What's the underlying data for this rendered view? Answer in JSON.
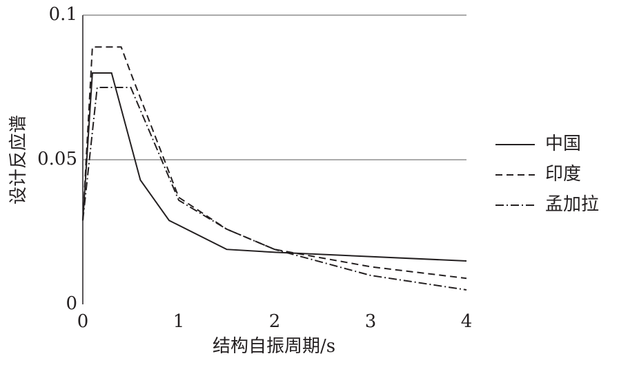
{
  "chart_data": {
    "type": "line",
    "xlabel": "结构自振周期/s",
    "ylabel": "设计反应谱",
    "xlim": [
      0,
      4
    ],
    "ylim": [
      0,
      0.1
    ],
    "xticks": [
      0,
      1,
      2,
      3,
      4
    ],
    "yticks": [
      0,
      0.05,
      0.1
    ],
    "grid": true,
    "legend": "right",
    "series": [
      {
        "name": "中国",
        "color": "#231f20",
        "linestyle": "solid",
        "x": [
          0,
          0.1,
          0.3,
          0.6,
          0.9,
          1.5,
          2,
          4
        ],
        "values": [
          0.029,
          0.08,
          0.08,
          0.043,
          0.029,
          0.019,
          0.018,
          0.015
        ]
      },
      {
        "name": "印度",
        "color": "#231f20",
        "linestyle": "dashed",
        "x": [
          0,
          0.1,
          0.4,
          0.5,
          1,
          1.5,
          2,
          3,
          4
        ],
        "values": [
          0.029,
          0.089,
          0.089,
          0.08,
          0.037,
          0.026,
          0.019,
          0.013,
          0.009
        ]
      },
      {
        "name": "孟加拉",
        "color": "#231f20",
        "linestyle": "dashdot",
        "x": [
          0,
          0.15,
          0.5,
          1,
          1.5,
          2,
          3,
          4
        ],
        "values": [
          0.029,
          0.075,
          0.075,
          0.036,
          0.026,
          0.019,
          0.01,
          0.005
        ]
      }
    ]
  }
}
